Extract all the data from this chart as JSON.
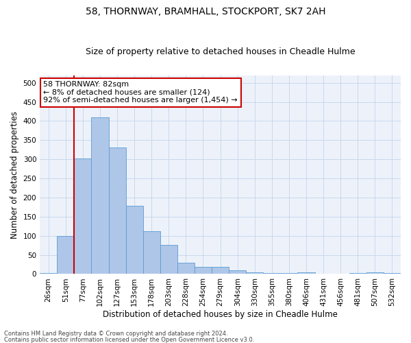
{
  "title": "58, THORNWAY, BRAMHALL, STOCKPORT, SK7 2AH",
  "subtitle": "Size of property relative to detached houses in Cheadle Hulme",
  "xlabel": "Distribution of detached houses by size in Cheadle Hulme",
  "ylabel": "Number of detached properties",
  "categories": [
    "26sqm",
    "51sqm",
    "77sqm",
    "102sqm",
    "127sqm",
    "153sqm",
    "178sqm",
    "203sqm",
    "228sqm",
    "254sqm",
    "279sqm",
    "304sqm",
    "330sqm",
    "355sqm",
    "380sqm",
    "406sqm",
    "431sqm",
    "456sqm",
    "481sqm",
    "507sqm",
    "532sqm"
  ],
  "values": [
    3,
    99,
    302,
    410,
    330,
    178,
    112,
    76,
    30,
    18,
    18,
    10,
    5,
    2,
    2,
    5,
    1,
    0,
    2,
    4,
    2
  ],
  "bar_color": "#aec6e8",
  "bar_edge_color": "#5b9bd5",
  "annotation_line1": "58 THORNWAY: 82sqm",
  "annotation_line2": "← 8% of detached houses are smaller (124)",
  "annotation_line3": "92% of semi-detached houses are larger (1,454) →",
  "vline_index": 2,
  "vline_color": "#cc0000",
  "annotation_box_color": "#ffffff",
  "annotation_box_edge_color": "#cc0000",
  "grid_color": "#c8d8ec",
  "background_color": "#edf2fa",
  "footer_line1": "Contains HM Land Registry data © Crown copyright and database right 2024.",
  "footer_line2": "Contains public sector information licensed under the Open Government Licence v3.0.",
  "ylim": [
    0,
    520
  ],
  "yticks": [
    0,
    50,
    100,
    150,
    200,
    250,
    300,
    350,
    400,
    450,
    500
  ],
  "title_fontsize": 10,
  "subtitle_fontsize": 9,
  "xlabel_fontsize": 8.5,
  "ylabel_fontsize": 8.5,
  "tick_fontsize": 7.5,
  "annotation_fontsize": 8,
  "footer_fontsize": 6
}
